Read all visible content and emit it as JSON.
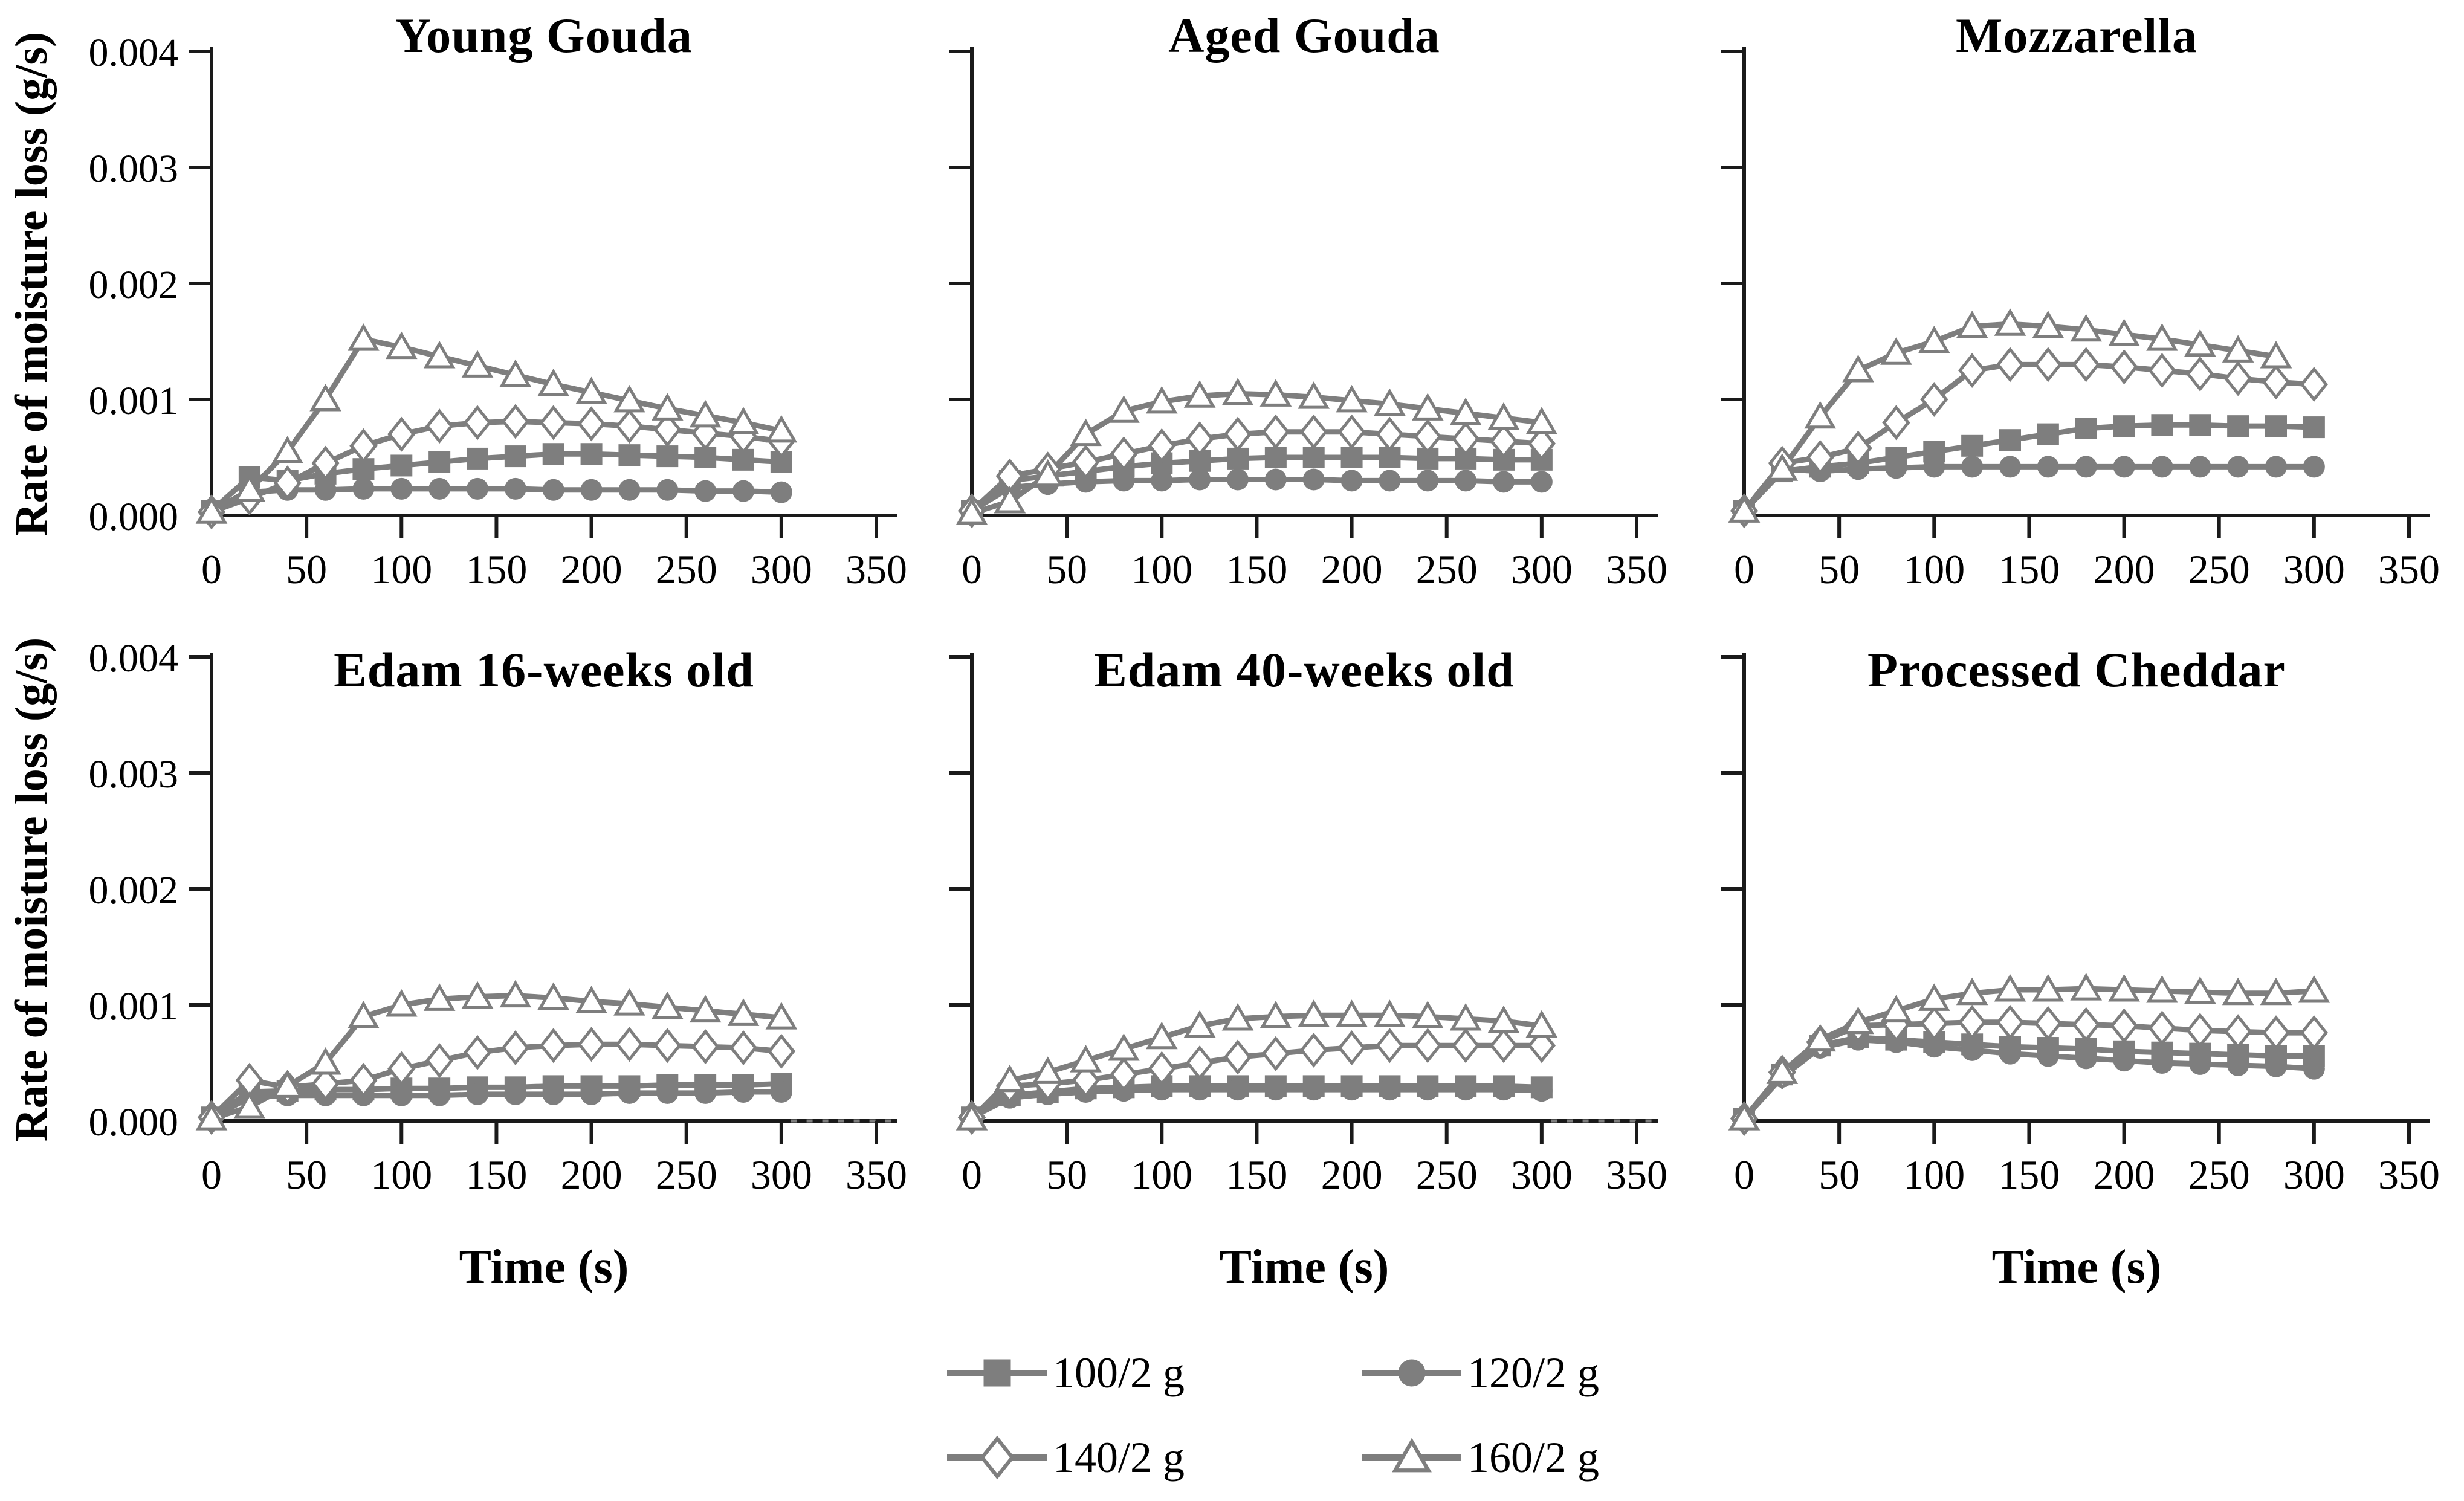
{
  "figure": {
    "y_axis_label": "Rate of moisture loss (g/s)",
    "x_axis_label": "Time (s)",
    "y_tick_labels": [
      "0.000",
      "0.001",
      "0.002",
      "0.003",
      "0.004"
    ],
    "x_tick_labels": [
      "0",
      "50",
      "100",
      "150",
      "200",
      "250",
      "300",
      "350"
    ]
  },
  "legend": {
    "items": [
      {
        "label": "100/2 g",
        "marker": "square-filled"
      },
      {
        "label": "120/2 g",
        "marker": "circle-filled"
      },
      {
        "label": "140/2 g",
        "marker": "diamond-open"
      },
      {
        "label": "160/2 g",
        "marker": "triangle-open"
      }
    ]
  },
  "colors": {
    "series": "#7e7e7e",
    "axis": "#1a1a1a",
    "text": "#000000",
    "open_fill": "#ffffff",
    "background": "#ffffff"
  },
  "chart_data": [
    {
      "type": "line",
      "title": "Young Gouda",
      "xlabel": "Time (s)",
      "ylabel": "Rate of moisture loss (g/s)",
      "xlim": [
        0,
        350
      ],
      "ylim": [
        0,
        0.004
      ],
      "grid": false,
      "x": [
        0,
        20,
        40,
        60,
        80,
        100,
        120,
        140,
        160,
        180,
        200,
        220,
        240,
        260,
        280,
        300
      ],
      "series": [
        {
          "name": "100/2 g",
          "marker": "square-filled",
          "values": [
            4e-05,
            0.00033,
            0.0003,
            0.00036,
            0.0004,
            0.00043,
            0.00046,
            0.00049,
            0.00051,
            0.00053,
            0.00053,
            0.00052,
            0.00051,
            0.0005,
            0.00048,
            0.00046
          ]
        },
        {
          "name": "120/2 g",
          "marker": "circle-filled",
          "values": [
            4e-05,
            0.0002,
            0.00022,
            0.00022,
            0.00023,
            0.00023,
            0.00023,
            0.00023,
            0.00023,
            0.00022,
            0.00022,
            0.00022,
            0.00022,
            0.00021,
            0.00021,
            0.0002
          ]
        },
        {
          "name": "140/2 g",
          "marker": "diamond-open",
          "values": [
            3e-05,
            0.00015,
            0.00028,
            0.00045,
            0.0006,
            0.0007,
            0.00077,
            0.0008,
            0.00081,
            0.0008,
            0.00079,
            0.00077,
            0.00074,
            0.00071,
            0.00068,
            0.00064
          ]
        },
        {
          "name": "160/2 g",
          "marker": "triangle-open",
          "values": [
            3e-05,
            0.00022,
            0.00055,
            0.001,
            0.00152,
            0.00145,
            0.00137,
            0.00129,
            0.00121,
            0.00113,
            0.00106,
            0.00099,
            0.00092,
            0.00086,
            0.0008,
            0.00073
          ]
        }
      ]
    },
    {
      "type": "line",
      "title": "Aged Gouda",
      "xlabel": "Time (s)",
      "ylabel": "Rate of moisture loss (g/s)",
      "xlim": [
        0,
        350
      ],
      "ylim": [
        0,
        0.004
      ],
      "grid": false,
      "x": [
        0,
        20,
        40,
        60,
        80,
        100,
        120,
        140,
        160,
        180,
        200,
        220,
        240,
        260,
        280,
        300
      ],
      "series": [
        {
          "name": "100/2 g",
          "marker": "square-filled",
          "values": [
            4e-05,
            0.0003,
            0.00034,
            0.00038,
            0.00042,
            0.00045,
            0.00047,
            0.00049,
            0.0005,
            0.0005,
            0.0005,
            0.0005,
            0.00049,
            0.00049,
            0.00048,
            0.00048
          ]
        },
        {
          "name": "120/2 g",
          "marker": "circle-filled",
          "values": [
            4e-05,
            0.00024,
            0.00027,
            0.00029,
            0.0003,
            0.0003,
            0.00031,
            0.00031,
            0.00031,
            0.00031,
            0.0003,
            0.0003,
            0.0003,
            0.0003,
            0.00029,
            0.00029
          ]
        },
        {
          "name": "140/2 g",
          "marker": "diamond-open",
          "values": [
            4e-05,
            0.00034,
            0.0004,
            0.00046,
            0.00053,
            0.0006,
            0.00066,
            0.0007,
            0.00072,
            0.00072,
            0.00072,
            0.0007,
            0.00068,
            0.00066,
            0.00064,
            0.00062
          ]
        },
        {
          "name": "160/2 g",
          "marker": "triangle-open",
          "values": [
            2e-05,
            0.00012,
            0.00035,
            0.0007,
            0.0009,
            0.00098,
            0.00103,
            0.00105,
            0.00104,
            0.00102,
            0.00099,
            0.00096,
            0.00092,
            0.00088,
            0.00084,
            0.0008
          ]
        }
      ]
    },
    {
      "type": "line",
      "title": "Mozzarella",
      "xlabel": "Time (s)",
      "ylabel": "Rate of moisture loss (g/s)",
      "xlim": [
        0,
        350
      ],
      "ylim": [
        0,
        0.004
      ],
      "grid": false,
      "x": [
        0,
        20,
        40,
        60,
        80,
        100,
        120,
        140,
        160,
        180,
        200,
        220,
        240,
        260,
        280,
        300
      ],
      "series": [
        {
          "name": "100/2 g",
          "marker": "square-filled",
          "values": [
            4e-05,
            0.00038,
            0.00042,
            0.00045,
            0.0005,
            0.00055,
            0.0006,
            0.00065,
            0.0007,
            0.00075,
            0.00077,
            0.00078,
            0.00078,
            0.00077,
            0.00077,
            0.00076
          ]
        },
        {
          "name": "120/2 g",
          "marker": "circle-filled",
          "values": [
            4e-05,
            0.0004,
            0.00038,
            0.0004,
            0.00041,
            0.00042,
            0.00042,
            0.00042,
            0.00042,
            0.00042,
            0.00042,
            0.00042,
            0.00042,
            0.00042,
            0.00042,
            0.00042
          ]
        },
        {
          "name": "140/2 g",
          "marker": "diamond-open",
          "values": [
            4e-05,
            0.00045,
            0.0005,
            0.00058,
            0.0008,
            0.001,
            0.00125,
            0.0013,
            0.0013,
            0.0013,
            0.00128,
            0.00125,
            0.00122,
            0.00118,
            0.00115,
            0.00113
          ]
        },
        {
          "name": "160/2 g",
          "marker": "triangle-open",
          "values": [
            4e-05,
            0.0004,
            0.00085,
            0.00125,
            0.0014,
            0.0015,
            0.00163,
            0.00165,
            0.00163,
            0.0016,
            0.00156,
            0.00152,
            0.00147,
            0.00142,
            0.00137,
            null
          ]
        }
      ]
    },
    {
      "type": "line",
      "title": "Edam 16-weeks old",
      "xlabel": "Time (s)",
      "ylabel": "Rate of moisture loss (g/s)",
      "xlim": [
        0,
        350
      ],
      "ylim": [
        0,
        0.004
      ],
      "grid": false,
      "axis_dashed_tail": true,
      "x": [
        0,
        20,
        40,
        60,
        80,
        100,
        120,
        140,
        160,
        180,
        200,
        220,
        240,
        260,
        280,
        300
      ],
      "series": [
        {
          "name": "100/2 g",
          "marker": "square-filled",
          "values": [
            3e-05,
            0.00025,
            0.00026,
            0.00027,
            0.00027,
            0.00028,
            0.00028,
            0.00029,
            0.00029,
            0.0003,
            0.0003,
            0.0003,
            0.00031,
            0.00031,
            0.00031,
            0.00032
          ]
        },
        {
          "name": "120/2 g",
          "marker": "circle-filled",
          "values": [
            3e-05,
            0.0002,
            0.00022,
            0.00022,
            0.00022,
            0.00022,
            0.00022,
            0.00023,
            0.00023,
            0.00023,
            0.00023,
            0.00024,
            0.00024,
            0.00024,
            0.00025,
            0.00025
          ]
        },
        {
          "name": "140/2 g",
          "marker": "diamond-open",
          "values": [
            3e-05,
            0.00035,
            0.00029,
            0.00032,
            0.00035,
            0.00045,
            0.00052,
            0.00059,
            0.00063,
            0.00065,
            0.00066,
            0.00066,
            0.00065,
            0.00064,
            0.00063,
            0.0006
          ]
        },
        {
          "name": "160/2 g",
          "marker": "triangle-open",
          "values": [
            2e-05,
            0.00012,
            0.0003,
            0.0005,
            0.0009,
            0.001,
            0.00105,
            0.00107,
            0.00108,
            0.00106,
            0.00103,
            0.00101,
            0.00098,
            0.00095,
            0.00092,
            0.00089
          ]
        }
      ]
    },
    {
      "type": "line",
      "title": "Edam 40-weeks old",
      "xlabel": "Time (s)",
      "ylabel": "Rate of moisture loss (g/s)",
      "xlim": [
        0,
        350
      ],
      "ylim": [
        0,
        0.004
      ],
      "grid": false,
      "axis_dashed_tail": true,
      "x": [
        0,
        20,
        40,
        60,
        80,
        100,
        120,
        140,
        160,
        180,
        200,
        220,
        240,
        260,
        280,
        300
      ],
      "series": [
        {
          "name": "100/2 g",
          "marker": "square-filled",
          "values": [
            3e-05,
            0.00022,
            0.00025,
            0.00028,
            0.00029,
            0.0003,
            0.0003,
            0.0003,
            0.0003,
            0.0003,
            0.0003,
            0.0003,
            0.0003,
            0.0003,
            0.0003,
            0.00029
          ]
        },
        {
          "name": "120/2 g",
          "marker": "circle-filled",
          "values": [
            3e-05,
            0.0002,
            0.00023,
            0.00025,
            0.00026,
            0.00027,
            0.00027,
            0.00027,
            0.00027,
            0.00027,
            0.00027,
            0.00027,
            0.00027,
            0.00027,
            0.00027,
            0.00026
          ]
        },
        {
          "name": "140/2 g",
          "marker": "diamond-open",
          "values": [
            3e-05,
            0.0003,
            0.00032,
            0.00035,
            0.0004,
            0.00045,
            0.0005,
            0.00055,
            0.00058,
            0.00061,
            0.00063,
            0.00065,
            0.00065,
            0.00065,
            0.00065,
            0.00065
          ]
        },
        {
          "name": "160/2 g",
          "marker": "triangle-open",
          "values": [
            2e-05,
            0.00035,
            0.00042,
            0.00052,
            0.00062,
            0.00072,
            0.00082,
            0.00088,
            0.0009,
            0.00091,
            0.00091,
            0.00091,
            0.0009,
            0.00088,
            0.00086,
            0.00082
          ]
        }
      ]
    },
    {
      "type": "line",
      "title": "Processed Cheddar",
      "xlabel": "Time (s)",
      "ylabel": "Rate of moisture loss (g/s)",
      "xlim": [
        0,
        350
      ],
      "ylim": [
        0,
        0.004
      ],
      "grid": false,
      "x": [
        0,
        20,
        40,
        60,
        80,
        100,
        120,
        140,
        160,
        180,
        200,
        220,
        240,
        260,
        280,
        300
      ],
      "series": [
        {
          "name": "100/2 g",
          "marker": "square-filled",
          "values": [
            2e-05,
            0.0004,
            0.00065,
            0.00072,
            0.0007,
            0.00068,
            0.00066,
            0.00064,
            0.00063,
            0.00062,
            0.0006,
            0.00059,
            0.00058,
            0.00057,
            0.00056,
            0.00056
          ]
        },
        {
          "name": "120/2 g",
          "marker": "circle-filled",
          "values": [
            2e-05,
            0.00038,
            0.00063,
            0.0007,
            0.00068,
            0.00064,
            0.00061,
            0.00058,
            0.00056,
            0.00054,
            0.00052,
            0.0005,
            0.00049,
            0.00048,
            0.00047,
            0.00045
          ]
        },
        {
          "name": "140/2 g",
          "marker": "diamond-open",
          "values": [
            2e-05,
            0.00042,
            0.00068,
            0.00082,
            0.00083,
            0.00084,
            0.00085,
            0.00085,
            0.00084,
            0.00083,
            0.00082,
            0.0008,
            0.00078,
            0.00077,
            0.00076,
            0.00076
          ]
        },
        {
          "name": "160/2 g",
          "marker": "triangle-open",
          "values": [
            2e-05,
            0.00042,
            0.0007,
            0.00085,
            0.00095,
            0.00105,
            0.0011,
            0.00113,
            0.00113,
            0.00114,
            0.00113,
            0.00112,
            0.00111,
            0.0011,
            0.0011,
            0.00112
          ]
        }
      ]
    }
  ]
}
